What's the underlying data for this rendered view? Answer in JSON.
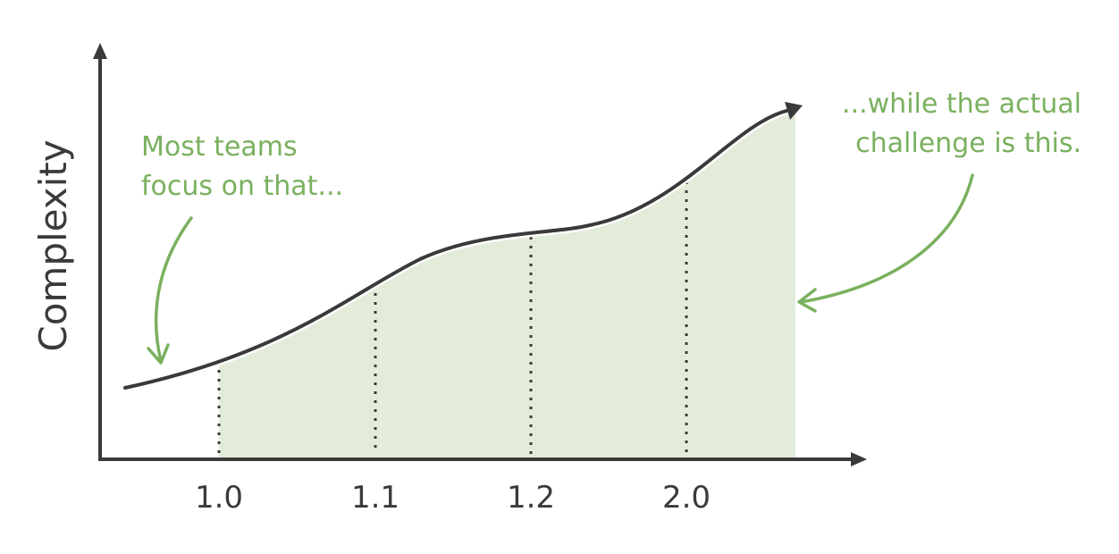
{
  "diagram": {
    "y_axis_label": "Complexity",
    "x_ticks": [
      "1.0",
      "1.1",
      "1.2",
      "2.0"
    ],
    "annotation_left": [
      "Most teams",
      "focus on that..."
    ],
    "annotation_right": [
      "...while the actual",
      "challenge is this."
    ],
    "colors": {
      "axis": "#3a3a3a",
      "curve": "#3a3a3a",
      "area_fill": "#e2ecd9",
      "accent_green": "#7ab05e"
    }
  }
}
